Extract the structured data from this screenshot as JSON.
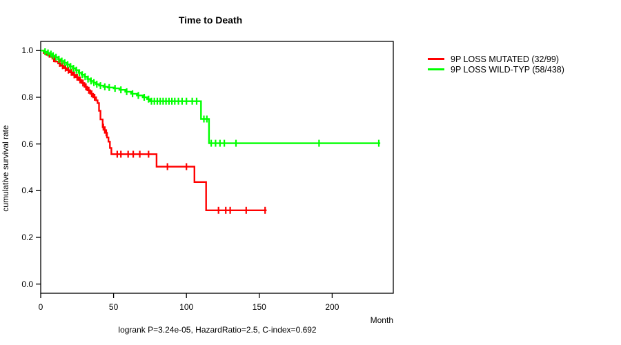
{
  "chart_data": {
    "type": "line",
    "subtype": "kaplan-meier-step-plot",
    "title": "Time to Death",
    "xlabel": "Month",
    "ylabel": "cumulative survival rate",
    "annotation": "logrank P=3.24e-05, HazardRatio=2.5, C-index=0.692",
    "x_ticks": [
      "0",
      "50",
      "100",
      "150",
      "200"
    ],
    "x_tick_values": [
      0,
      50,
      100,
      150,
      200
    ],
    "y_ticks": [
      "1.0",
      "0.8",
      "0.6",
      "0.4",
      "0.2",
      "0.0"
    ],
    "y_tick_values": [
      1.0,
      0.8,
      0.6,
      0.4,
      0.2,
      0.0
    ],
    "xlim": [
      0,
      242
    ],
    "ylim": [
      0.0,
      1.0
    ],
    "grid": false,
    "legend_position": "right-outside-top",
    "axis_color": "#000000",
    "series": [
      {
        "name": "9P LOSS MUTATED (32/99)",
        "color": "#ff0000",
        "steps": [
          [
            0,
            1.0
          ],
          [
            2,
            0.99
          ],
          [
            4,
            0.982
          ],
          [
            6,
            0.973
          ],
          [
            8,
            0.965
          ],
          [
            10,
            0.953
          ],
          [
            12,
            0.945
          ],
          [
            14,
            0.935
          ],
          [
            16,
            0.925
          ],
          [
            18,
            0.916
          ],
          [
            20,
            0.907
          ],
          [
            22,
            0.896
          ],
          [
            24,
            0.886
          ],
          [
            26,
            0.874
          ],
          [
            28,
            0.861
          ],
          [
            30,
            0.845
          ],
          [
            32,
            0.83
          ],
          [
            34,
            0.815
          ],
          [
            36,
            0.8
          ],
          [
            38,
            0.787
          ],
          [
            39,
            0.775
          ],
          [
            40,
            0.742
          ],
          [
            41,
            0.705
          ],
          [
            42.5,
            0.672
          ],
          [
            44,
            0.648
          ],
          [
            45.5,
            0.628
          ],
          [
            46.5,
            0.61
          ],
          [
            47.5,
            0.583
          ],
          [
            48.5,
            0.556
          ],
          [
            79.5,
            0.503
          ],
          [
            105.5,
            0.437
          ],
          [
            113.5,
            0.316
          ],
          [
            155,
            0.316
          ]
        ],
        "censors": [
          [
            9,
            0.965
          ],
          [
            13,
            0.945
          ],
          [
            15,
            0.935
          ],
          [
            17,
            0.925
          ],
          [
            19,
            0.916
          ],
          [
            21,
            0.907
          ],
          [
            23,
            0.896
          ],
          [
            25,
            0.886
          ],
          [
            27,
            0.874
          ],
          [
            29,
            0.861
          ],
          [
            31,
            0.845
          ],
          [
            33,
            0.83
          ],
          [
            35,
            0.815
          ],
          [
            37,
            0.8
          ],
          [
            43,
            0.672
          ],
          [
            45,
            0.648
          ],
          [
            52.5,
            0.556
          ],
          [
            55,
            0.556
          ],
          [
            60,
            0.556
          ],
          [
            63.5,
            0.556
          ],
          [
            68,
            0.556
          ],
          [
            74,
            0.556
          ],
          [
            87,
            0.503
          ],
          [
            100,
            0.503
          ],
          [
            122,
            0.316
          ],
          [
            127,
            0.316
          ],
          [
            130,
            0.316
          ],
          [
            141,
            0.316
          ],
          [
            154,
            0.316
          ]
        ]
      },
      {
        "name": "9P LOSS WILD-TYP (58/438)",
        "color": "#00ff00",
        "steps": [
          [
            0,
            1.0
          ],
          [
            2,
            0.995
          ],
          [
            4,
            0.99
          ],
          [
            6,
            0.985
          ],
          [
            8,
            0.978
          ],
          [
            10,
            0.972
          ],
          [
            12,
            0.963
          ],
          [
            14,
            0.955
          ],
          [
            16,
            0.948
          ],
          [
            18,
            0.94
          ],
          [
            20,
            0.932
          ],
          [
            22,
            0.924
          ],
          [
            24,
            0.916
          ],
          [
            26,
            0.905
          ],
          [
            28,
            0.897
          ],
          [
            30,
            0.888
          ],
          [
            32,
            0.878
          ],
          [
            34,
            0.87
          ],
          [
            36,
            0.863
          ],
          [
            38,
            0.856
          ],
          [
            40,
            0.85
          ],
          [
            43,
            0.845
          ],
          [
            46,
            0.842
          ],
          [
            50,
            0.838
          ],
          [
            54,
            0.832
          ],
          [
            58,
            0.824
          ],
          [
            62,
            0.815
          ],
          [
            66,
            0.808
          ],
          [
            70,
            0.8
          ],
          [
            73,
            0.792
          ],
          [
            75,
            0.783
          ],
          [
            110,
            0.707
          ],
          [
            115.5,
            0.603
          ],
          [
            233,
            0.603
          ]
        ],
        "censors": [
          [
            3,
            0.995
          ],
          [
            5,
            0.99
          ],
          [
            7,
            0.985
          ],
          [
            8.5,
            0.978
          ],
          [
            10.5,
            0.972
          ],
          [
            12.5,
            0.963
          ],
          [
            14.5,
            0.955
          ],
          [
            16.5,
            0.948
          ],
          [
            18.5,
            0.94
          ],
          [
            20.5,
            0.932
          ],
          [
            22.5,
            0.924
          ],
          [
            24.5,
            0.916
          ],
          [
            26.5,
            0.905
          ],
          [
            28.5,
            0.897
          ],
          [
            30.5,
            0.888
          ],
          [
            32.5,
            0.878
          ],
          [
            34.5,
            0.87
          ],
          [
            36.5,
            0.863
          ],
          [
            38.5,
            0.856
          ],
          [
            41,
            0.85
          ],
          [
            44,
            0.845
          ],
          [
            47,
            0.842
          ],
          [
            51,
            0.838
          ],
          [
            55,
            0.832
          ],
          [
            59,
            0.824
          ],
          [
            63,
            0.815
          ],
          [
            67,
            0.808
          ],
          [
            71,
            0.8
          ],
          [
            74,
            0.792
          ],
          [
            76,
            0.783
          ],
          [
            78,
            0.783
          ],
          [
            80,
            0.783
          ],
          [
            82,
            0.783
          ],
          [
            84,
            0.783
          ],
          [
            86,
            0.783
          ],
          [
            88,
            0.783
          ],
          [
            90,
            0.783
          ],
          [
            92,
            0.783
          ],
          [
            94.5,
            0.783
          ],
          [
            97,
            0.783
          ],
          [
            100,
            0.783
          ],
          [
            104,
            0.783
          ],
          [
            107,
            0.783
          ],
          [
            112,
            0.707
          ],
          [
            114,
            0.707
          ],
          [
            117,
            0.603
          ],
          [
            120,
            0.603
          ],
          [
            123,
            0.603
          ],
          [
            126,
            0.603
          ],
          [
            134,
            0.603
          ],
          [
            191,
            0.603
          ],
          [
            232,
            0.603
          ]
        ]
      }
    ]
  }
}
